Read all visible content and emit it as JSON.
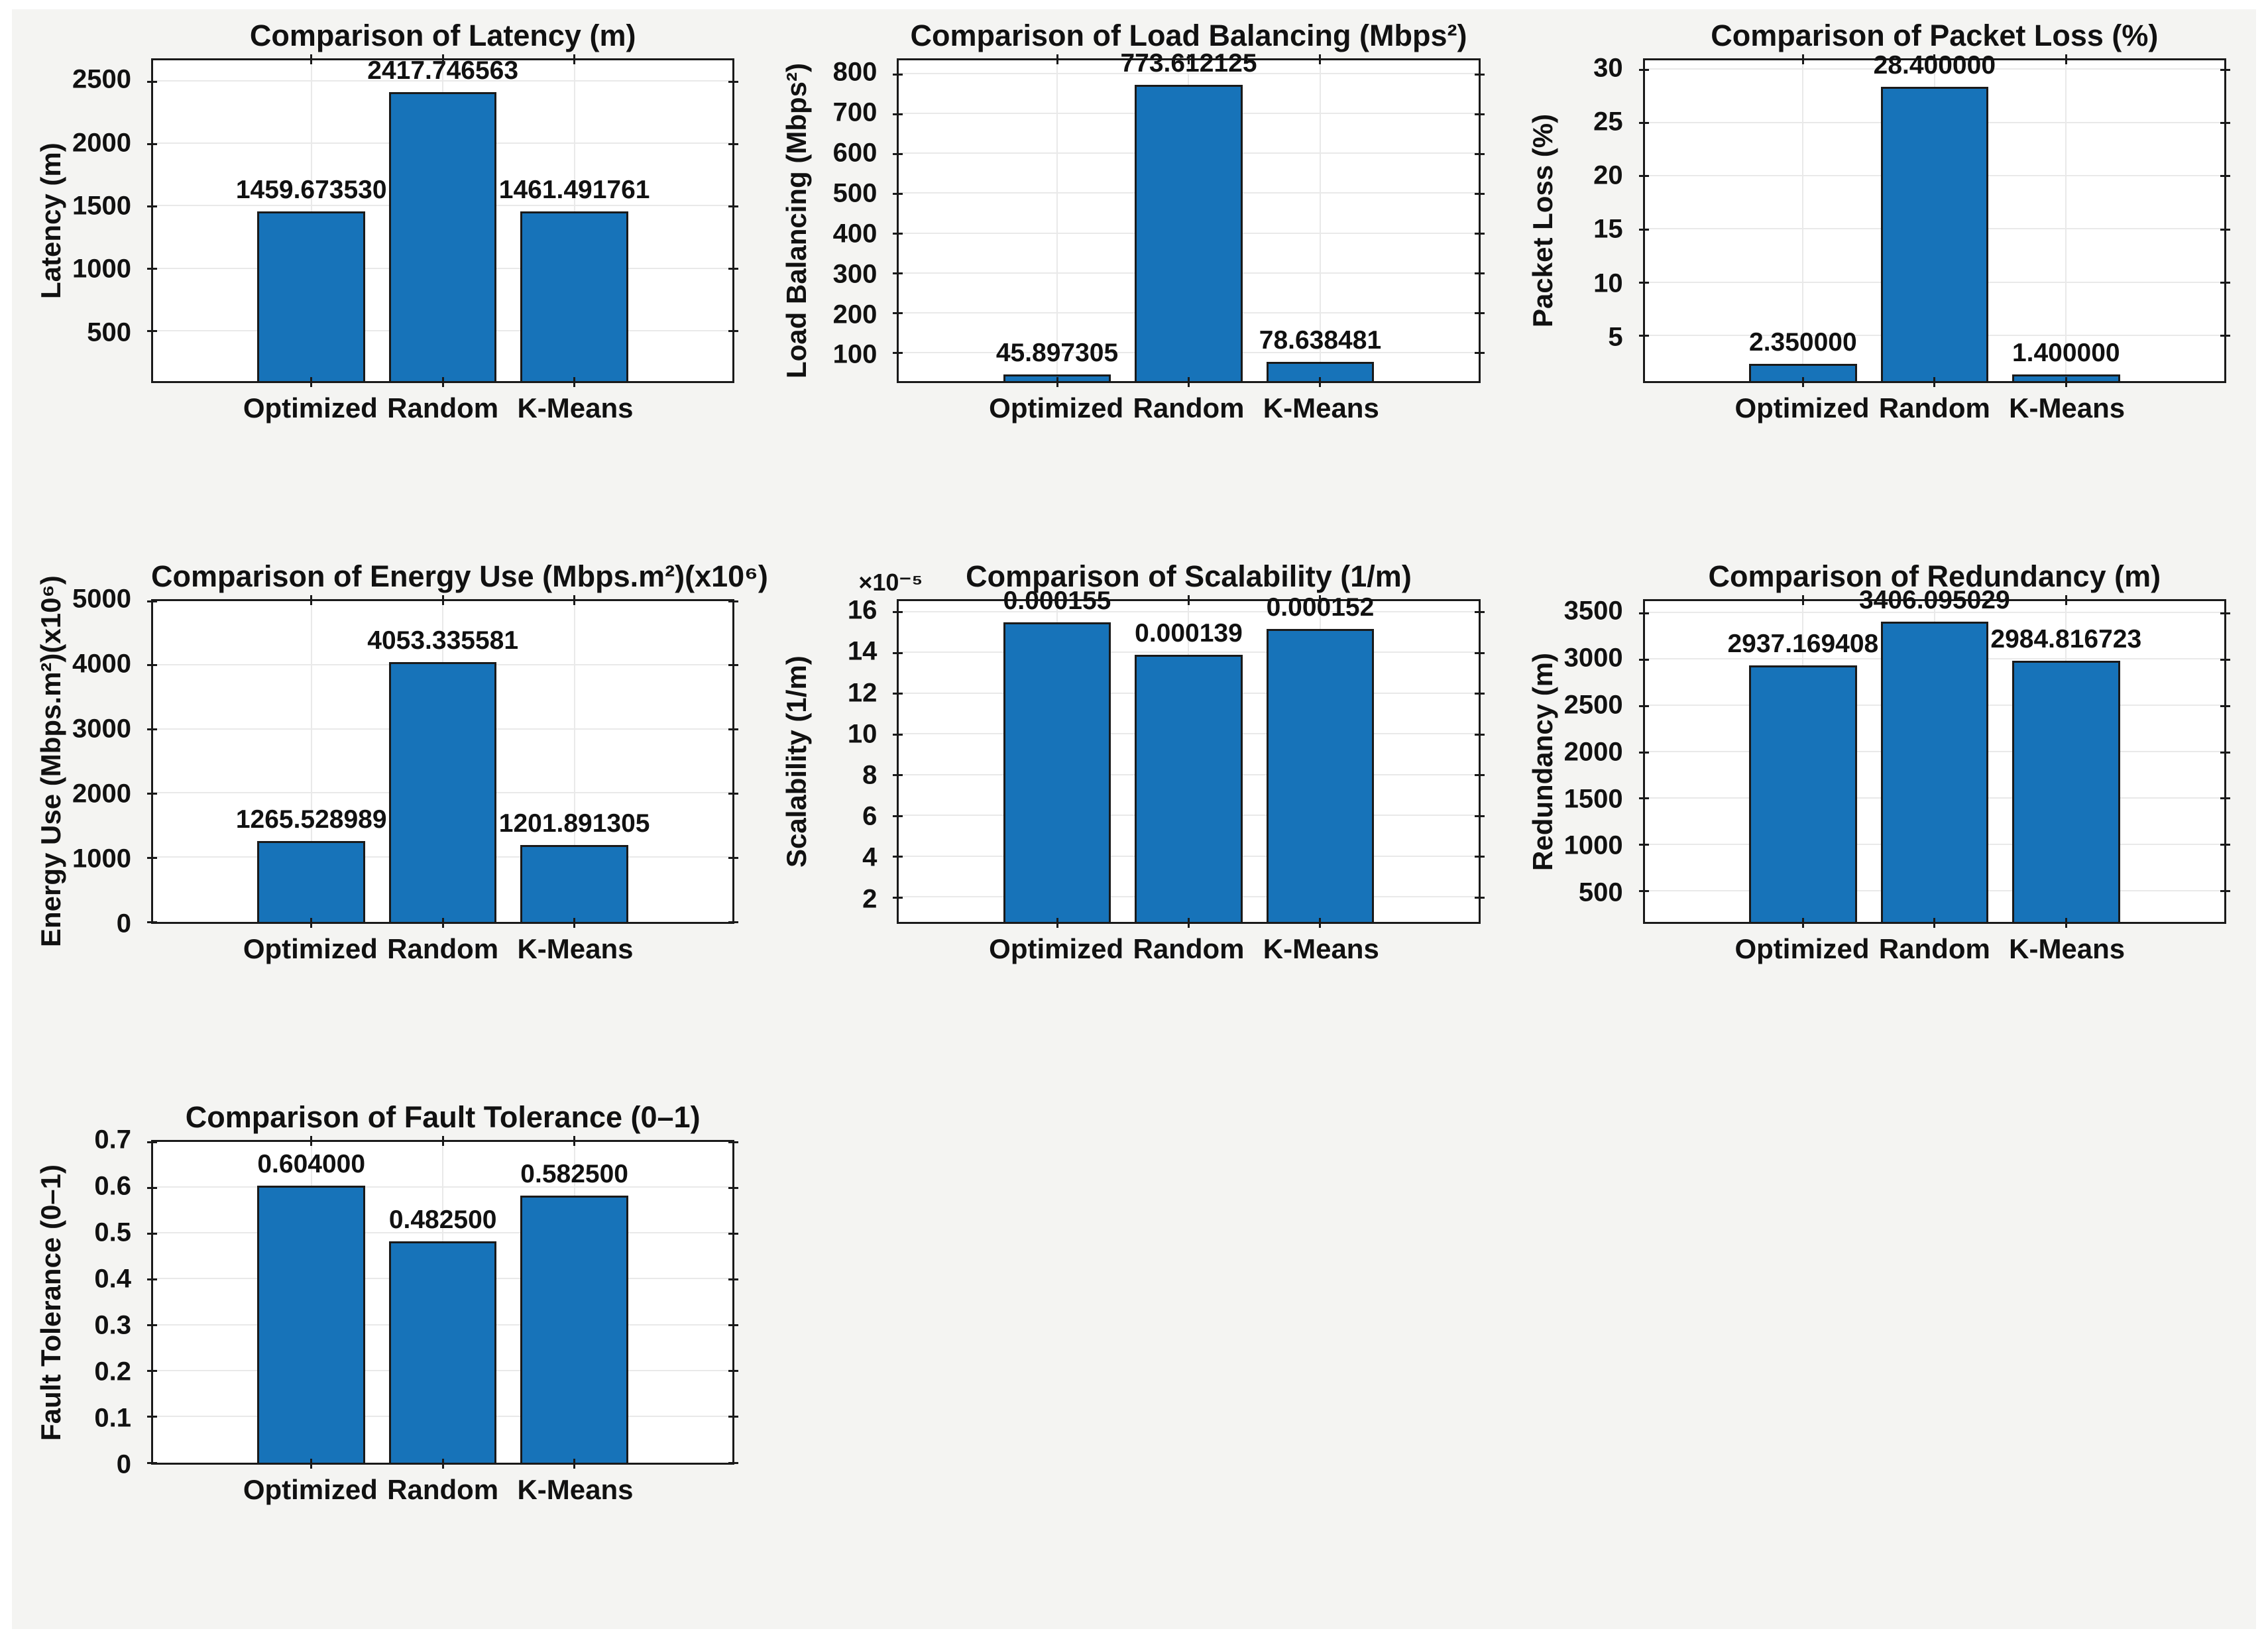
{
  "figure": {
    "page_background": "#ffffff",
    "figure_background": "#f4f4f2",
    "axes_background": "#ffffff"
  },
  "colors": {
    "bar_fill": "#1773b9",
    "bar_edge": "#1a1a1a",
    "axis_line": "#1a1a1a",
    "grid_line": "#e9e9e9",
    "text": "#111111"
  },
  "chart_data": [
    {
      "id": "latency",
      "type": "bar",
      "title": "Comparison of Latency (m)",
      "ylabel": "Latency (m)",
      "categories": [
        "Optimized",
        "Random",
        "K-Means"
      ],
      "values": [
        1459.67353,
        2417.746563,
        1461.491761
      ],
      "value_labels": [
        "1459.673530",
        "2417.746563",
        "1461.491761"
      ],
      "plot_values": [
        1459.67353,
        2417.746563,
        1461.491761
      ],
      "yticks": [
        500,
        1000,
        1500,
        2000,
        2500
      ],
      "ytick_labels": [
        "500",
        "1000",
        "1500",
        "2000",
        "2500"
      ],
      "ylim": [
        100,
        2670
      ],
      "grid": true,
      "legend": null
    },
    {
      "id": "load-balancing",
      "type": "bar",
      "title": "Comparison of Load Balancing (Mbps²)",
      "ylabel": "Load Balancing (Mbps²)",
      "categories": [
        "Optimized",
        "Random",
        "K-Means"
      ],
      "values": [
        45.897305,
        773.612125,
        78.638481
      ],
      "value_labels": [
        "45.897305",
        "773.612125",
        "78.638481"
      ],
      "plot_values": [
        45.897305,
        773.612125,
        78.638481
      ],
      "yticks": [
        100,
        200,
        300,
        400,
        500,
        600,
        700,
        800
      ],
      "ytick_labels": [
        "100",
        "200",
        "300",
        "400",
        "500",
        "600",
        "700",
        "800"
      ],
      "ylim": [
        30,
        835
      ],
      "grid": true,
      "legend": null
    },
    {
      "id": "packet-loss",
      "type": "bar",
      "title": "Comparison of Packet Loss (%)",
      "ylabel": "Packet Loss (%)",
      "categories": [
        "Optimized",
        "Random",
        "K-Means"
      ],
      "values": [
        2.35,
        28.4,
        1.4
      ],
      "value_labels": [
        "2.350000",
        "28.400000",
        "1.400000"
      ],
      "plot_values": [
        2.35,
        28.4,
        1.4
      ],
      "yticks": [
        5,
        10,
        15,
        20,
        25,
        30
      ],
      "ytick_labels": [
        "5",
        "10",
        "15",
        "20",
        "25",
        "30"
      ],
      "ylim": [
        0.75,
        30.9
      ],
      "grid": true,
      "legend": null
    },
    {
      "id": "energy-use",
      "type": "bar",
      "title": "Comparison of Energy Use (Mbps.m²)(x10⁶)",
      "ylabel": "Energy Use (Mbps.m²)(x10⁶)",
      "categories": [
        "Optimized",
        "Random",
        "K-Means"
      ],
      "values": [
        1265.528989,
        4053.335581,
        1201.891305
      ],
      "value_labels": [
        "1265.528989",
        "4053.335581",
        "1201.891305"
      ],
      "plot_values": [
        1265.528989,
        4053.335581,
        1201.891305
      ],
      "yticks": [
        0,
        1000,
        2000,
        3000,
        4000,
        5000
      ],
      "ytick_labels": [
        "0",
        "1000",
        "2000",
        "3000",
        "4000",
        "5000"
      ],
      "ylim": [
        0,
        5000
      ],
      "grid": true,
      "legend": null
    },
    {
      "id": "scalability",
      "type": "bar",
      "title": "Comparison of Scalability (1/m)",
      "ylabel": "Scalability (1/m)",
      "categories": [
        "Optimized",
        "Random",
        "K-Means"
      ],
      "values": [
        0.000155,
        0.000139,
        0.000152
      ],
      "value_labels": [
        "0.000155",
        "0.000139",
        "0.000152"
      ],
      "plot_values": [
        15.5,
        13.9,
        15.2
      ],
      "yticks": [
        2,
        4,
        6,
        8,
        10,
        12,
        14,
        16
      ],
      "ytick_labels": [
        "2",
        "4",
        "6",
        "8",
        "10",
        "12",
        "14",
        "16"
      ],
      "ytick_scale": 1e-05,
      "exponent": "×10⁻⁵",
      "ylim": [
        0.8,
        16.55
      ],
      "grid": true,
      "legend": null
    },
    {
      "id": "redundancy",
      "type": "bar",
      "title": "Comparison of Redundancy (m)",
      "ylabel": "Redundancy (m)",
      "categories": [
        "Optimized",
        "Random",
        "K-Means"
      ],
      "values": [
        2937.169408,
        3406.095029,
        2984.816723
      ],
      "value_labels": [
        "2937.169408",
        "3406.095029",
        "2984.816723"
      ],
      "plot_values": [
        2937.169408,
        3406.095029,
        2984.816723
      ],
      "yticks": [
        500,
        1000,
        1500,
        2000,
        2500,
        3000,
        3500
      ],
      "ytick_labels": [
        "500",
        "1000",
        "1500",
        "2000",
        "2500",
        "3000",
        "3500"
      ],
      "ylim": [
        170,
        3630
      ],
      "grid": true,
      "legend": null
    },
    {
      "id": "fault-tolerance",
      "type": "bar",
      "title": "Comparison of Fault Tolerance (0–1)",
      "ylabel": "Fault Tolerance (0–1)",
      "categories": [
        "Optimized",
        "Random",
        "K-Means"
      ],
      "values": [
        0.604,
        0.4825,
        0.5825
      ],
      "value_labels": [
        "0.604000",
        "0.482500",
        "0.582500"
      ],
      "plot_values": [
        0.604,
        0.4825,
        0.5825
      ],
      "yticks": [
        0,
        0.1,
        0.2,
        0.3,
        0.4,
        0.5,
        0.6,
        0.7
      ],
      "ytick_labels": [
        "0",
        "0.1",
        "0.2",
        "0.3",
        "0.4",
        "0.5",
        "0.6",
        "0.7"
      ],
      "ylim": [
        0,
        0.7
      ],
      "grid": true,
      "legend": null
    }
  ]
}
